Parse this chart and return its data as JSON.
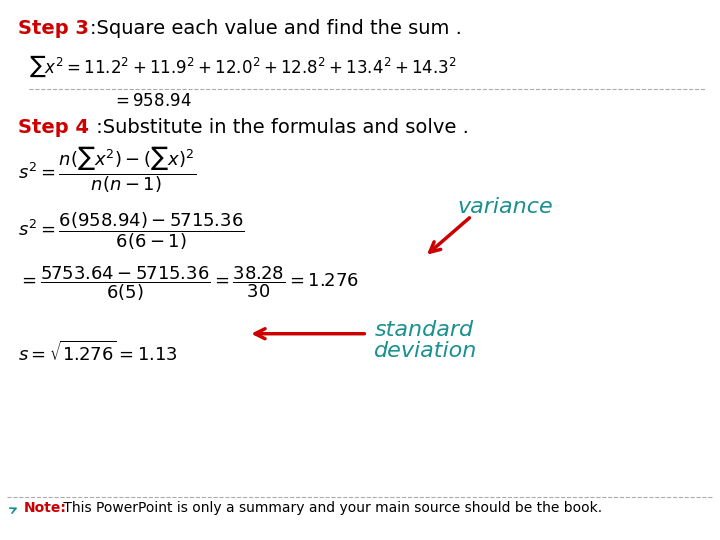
{
  "bg_color": "#ffffff",
  "step3_label": "Step 3",
  "step3_text": ":Square each value and find the sum .",
  "step4_label": "Step 4",
  "step4_text": " :Substitute in the formulas and solve .",
  "note_label": "Note:",
  "note_text": " This PowerPoint is only a summary and your main source should be the book.",
  "red_color": "#cc0000",
  "teal_color": "#1a9090",
  "black_color": "#000000",
  "font_size_heading": 14,
  "font_size_body": 13,
  "font_size_math": 12,
  "font_size_note": 10
}
